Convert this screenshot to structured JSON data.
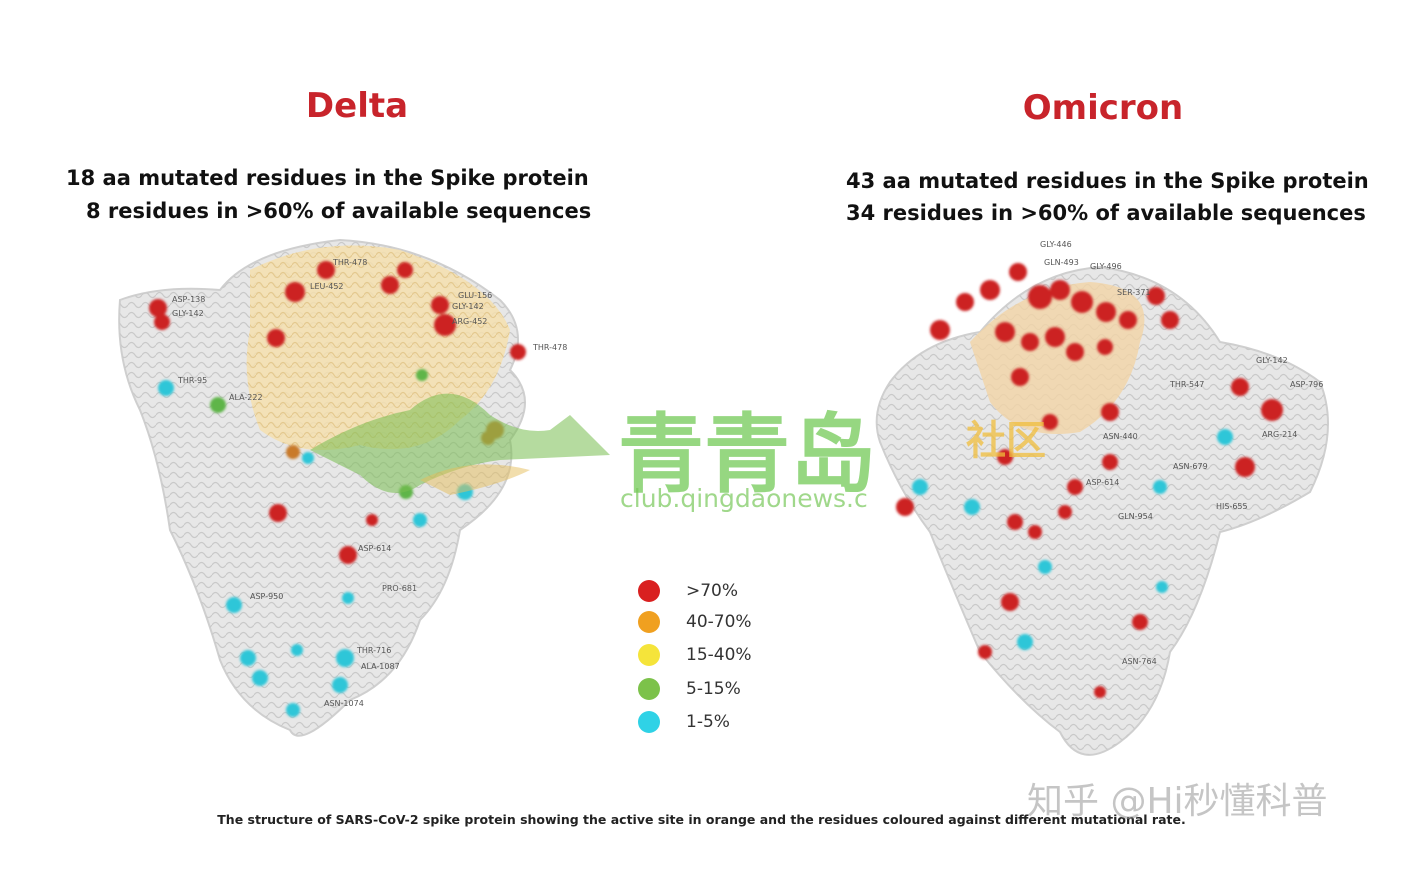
{
  "delta": {
    "title": "Delta",
    "line1": "18 aa mutated residues in the Spike protein",
    "line2": "8 residues in >60% of available sequences",
    "residue_labels": [
      "ASP-138",
      "GLY-142",
      "THR-478",
      "LEU-452",
      "GLU-156",
      "GLY-142",
      "ARG-452",
      "THR-478",
      "THR-95",
      "ALA-222",
      "ASP-614",
      "PRO-681",
      "THR-716",
      "ASP-950",
      "ALA-1087",
      "ASN-1074"
    ]
  },
  "omicron": {
    "title": "Omicron",
    "line1": "43 aa mutated residues in the Spike protein",
    "line2": "34 residues in >60% of available sequences",
    "residue_labels": [
      "GLY-446",
      "GLN-493",
      "GLY-496",
      "SER-371",
      "ASN-440",
      "THR-547",
      "ASP-614",
      "GLN-954",
      "HIS-655",
      "ARG-214",
      "GLY-142",
      "ASN-679",
      "ASN-764",
      "ASP-796"
    ]
  },
  "legend": [
    {
      "label": ">70%",
      "color": "#d92020"
    },
    {
      "label": "40-70%",
      "color": "#f0a020"
    },
    {
      "label": "15-40%",
      "color": "#f5e43a"
    },
    {
      "label": "5-15%",
      "color": "#7cc24a"
    },
    {
      "label": "1-5%",
      "color": "#2fd2e6"
    }
  ],
  "caption": "The structure of SARS-CoV-2 spike protein showing the active site in orange and the residues coloured against different mutational rate.",
  "watermark": {
    "logo_text": "青青岛",
    "logo_small": "社区",
    "url": "club.qingdaonews.c",
    "zhihu": "知乎 @Hi秒懂科普"
  }
}
